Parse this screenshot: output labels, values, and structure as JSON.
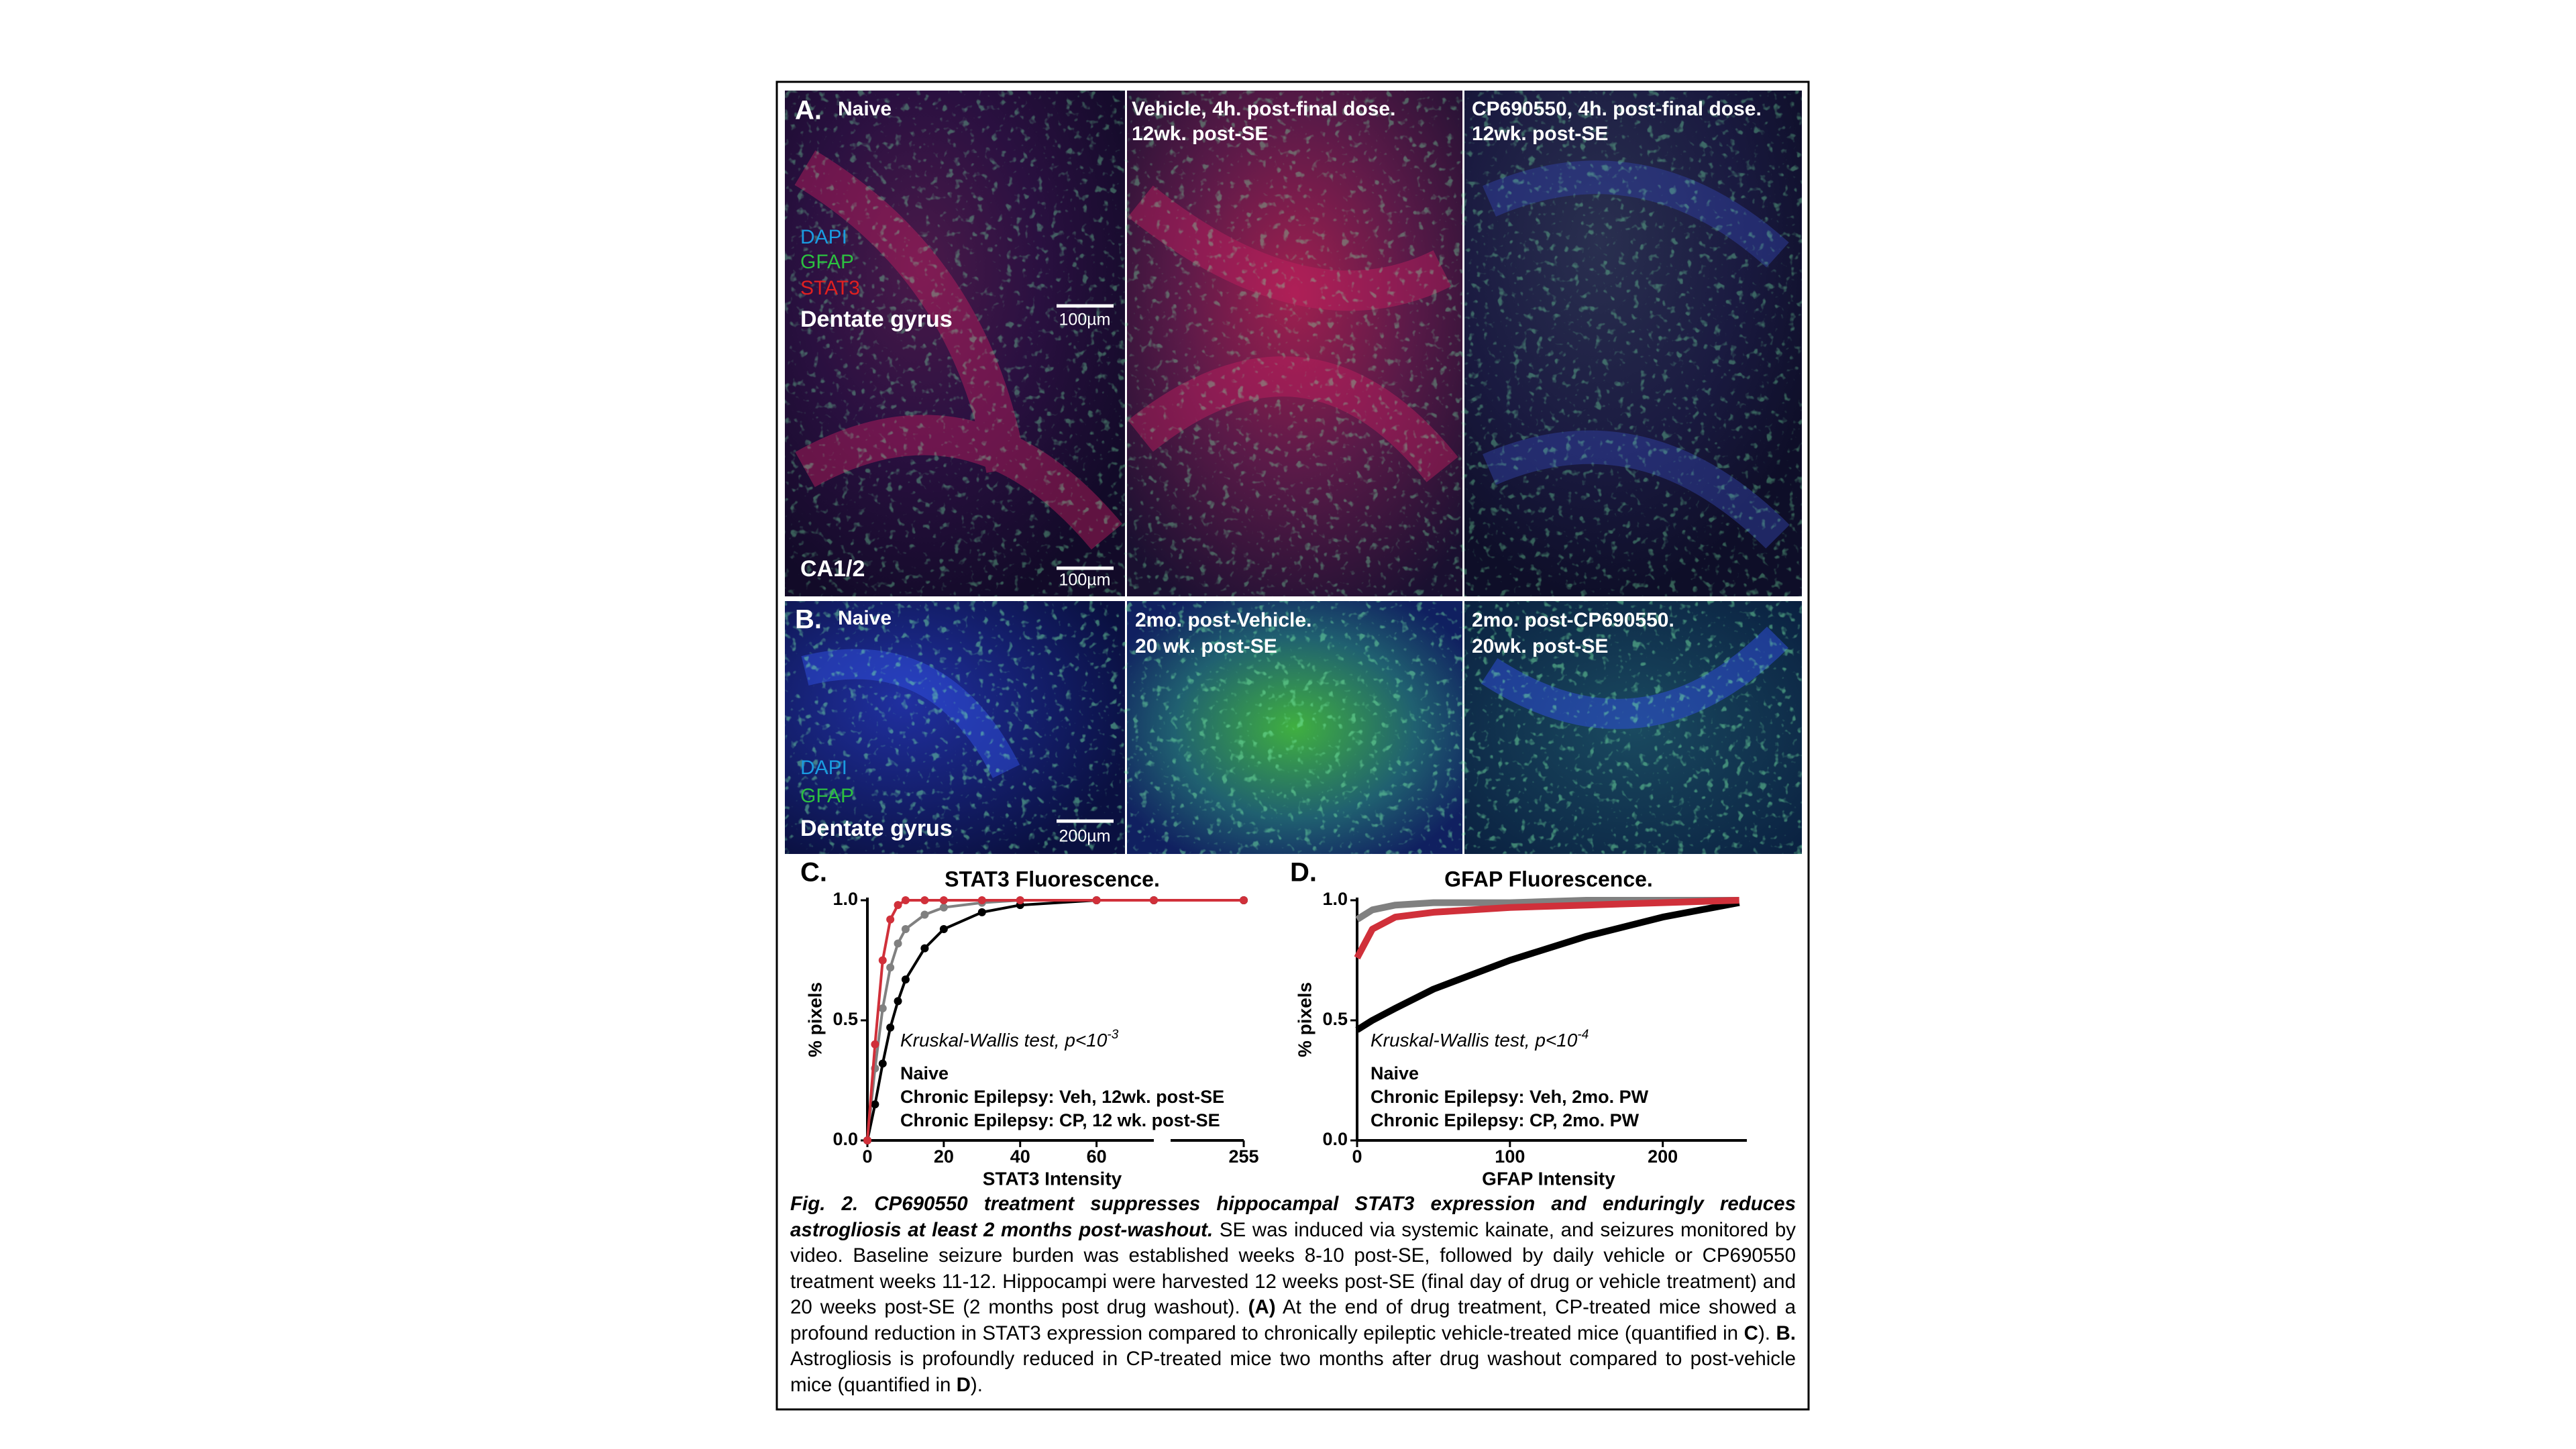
{
  "panels": {
    "a": {
      "label": "A.",
      "columns": [
        {
          "lines": [
            "Naive"
          ]
        },
        {
          "lines": [
            "Vehicle, 4h. post-final dose.",
            "12wk. post-SE"
          ]
        },
        {
          "lines": [
            "CP690550, 4h. post-final dose.",
            "12wk. post-SE"
          ]
        }
      ],
      "stains": [
        "DAPI",
        "GFAP",
        "STAT3"
      ],
      "region_top": "Dentate gyrus",
      "region_bottom": "CA1/2",
      "scalebar_top": "100µm",
      "scalebar_bottom": "100µm"
    },
    "b": {
      "label": "B.",
      "columns": [
        {
          "lines": [
            "Naive"
          ]
        },
        {
          "lines": [
            "2mo. post-Vehicle.",
            "20 wk. post-SE"
          ]
        },
        {
          "lines": [
            "2mo. post-CP690550.",
            "20wk. post-SE"
          ]
        }
      ],
      "stains": [
        "DAPI",
        "GFAP"
      ],
      "region": "Dentate gyrus",
      "scalebar": "200µm"
    }
  },
  "chart_data": [
    {
      "type": "line",
      "label": "C.",
      "title": "STAT3 Fluorescence.",
      "xlabel": "STAT3 Intensity",
      "ylabel": "% pixels",
      "xlim": [
        0,
        255
      ],
      "x_break": [
        75,
        250
      ],
      "xticks": [
        0,
        20,
        40,
        60,
        255
      ],
      "ylim": [
        0,
        1
      ],
      "yticks": [
        {
          "value": 0,
          "label": "0.0"
        },
        {
          "value": 0.5,
          "label": "0.5"
        },
        {
          "value": 1,
          "label": "1.0"
        }
      ],
      "markers": true,
      "annotation": {
        "text": "Kruskal-Wallis test, p<10",
        "superscript": "-3"
      },
      "series": [
        {
          "name": "Naive",
          "color": "#808080",
          "x": [
            0,
            2,
            4,
            6,
            8,
            10,
            15,
            20,
            30,
            40,
            60,
            75,
            255
          ],
          "values": [
            0,
            0.3,
            0.55,
            0.72,
            0.82,
            0.88,
            0.94,
            0.97,
            0.99,
            1,
            1,
            1,
            1
          ]
        },
        {
          "name": "Chronic Epilepsy: Veh, 12wk. post-SE",
          "color": "#000000",
          "x": [
            0,
            2,
            4,
            6,
            8,
            10,
            15,
            20,
            30,
            40,
            60,
            75,
            255
          ],
          "values": [
            0,
            0.15,
            0.32,
            0.47,
            0.58,
            0.67,
            0.8,
            0.88,
            0.95,
            0.98,
            1,
            1,
            1
          ]
        },
        {
          "name": "Chronic Epilepsy: CP, 12 wk. post-SE",
          "color": "#d0303a",
          "x": [
            0,
            2,
            4,
            6,
            8,
            10,
            15,
            20,
            30,
            40,
            60,
            75,
            255
          ],
          "values": [
            0,
            0.4,
            0.75,
            0.92,
            0.98,
            1,
            1,
            1,
            1,
            1,
            1,
            1,
            1
          ]
        }
      ]
    },
    {
      "type": "line",
      "label": "D.",
      "title": "GFAP Fluorescence.",
      "xlabel": "GFAP Intensity",
      "ylabel": "% pixels",
      "xlim": [
        0,
        255
      ],
      "xticks": [
        0,
        100,
        200
      ],
      "ylim": [
        0,
        1
      ],
      "yticks": [
        {
          "value": 0,
          "label": "0.0"
        },
        {
          "value": 0.5,
          "label": "0.5"
        },
        {
          "value": 1,
          "label": "1.0"
        }
      ],
      "markers": false,
      "annotation": {
        "text": "Kruskal-Wallis test, p<10",
        "superscript": "-4"
      },
      "series": [
        {
          "name": "Naive",
          "color": "#808080",
          "x": [
            0,
            10,
            25,
            50,
            100,
            150,
            200,
            250
          ],
          "values": [
            0.92,
            0.96,
            0.98,
            0.99,
            0.99,
            1,
            1,
            1
          ]
        },
        {
          "name": "Chronic Epilepsy: Veh, 2mo. PW",
          "color": "#000000",
          "x": [
            0,
            10,
            25,
            50,
            100,
            150,
            200,
            250
          ],
          "values": [
            0.46,
            0.5,
            0.55,
            0.63,
            0.75,
            0.85,
            0.93,
            0.99
          ]
        },
        {
          "name": "Chronic Epilepsy: CP, 2mo. PW",
          "color": "#d0303a",
          "x": [
            0,
            10,
            25,
            50,
            100,
            150,
            200,
            250
          ],
          "values": [
            0.76,
            0.88,
            0.93,
            0.95,
            0.97,
            0.98,
            0.99,
            1
          ]
        }
      ]
    }
  ],
  "caption": {
    "title": "Fig. 2. CP690550 treatment suppresses hippocampal STAT3 expression and enduringly reduces astrogliosis at least 2 months post-washout.",
    "segments": [
      {
        "text": " SE was induced via systemic kainate, and seizures monitored by video. Baseline seizure burden was established weeks 8-10 post-SE, followed by daily vehicle or CP690550 treatment weeks 11-12. Hippocampi were harvested 12 weeks post-SE (final day of drug or vehicle treatment) and 20 weeks post-SE (2 months post drug washout). ",
        "bold": false
      },
      {
        "text": "(A)",
        "bold": true
      },
      {
        "text": " At the end of drug treatment, CP-treated mice showed a profound reduction in STAT3 expression compared to chronically epileptic vehicle-treated mice (quantified in ",
        "bold": false
      },
      {
        "text": "C",
        "bold": true
      },
      {
        "text": "). ",
        "bold": false
      },
      {
        "text": "B.",
        "bold": true
      },
      {
        "text": " Astrogliosis is profoundly reduced in CP-treated mice two months after drug washout compared to post-vehicle mice (quantified in ",
        "bold": false
      },
      {
        "text": "D",
        "bold": true
      },
      {
        "text": ").",
        "bold": false
      }
    ]
  }
}
